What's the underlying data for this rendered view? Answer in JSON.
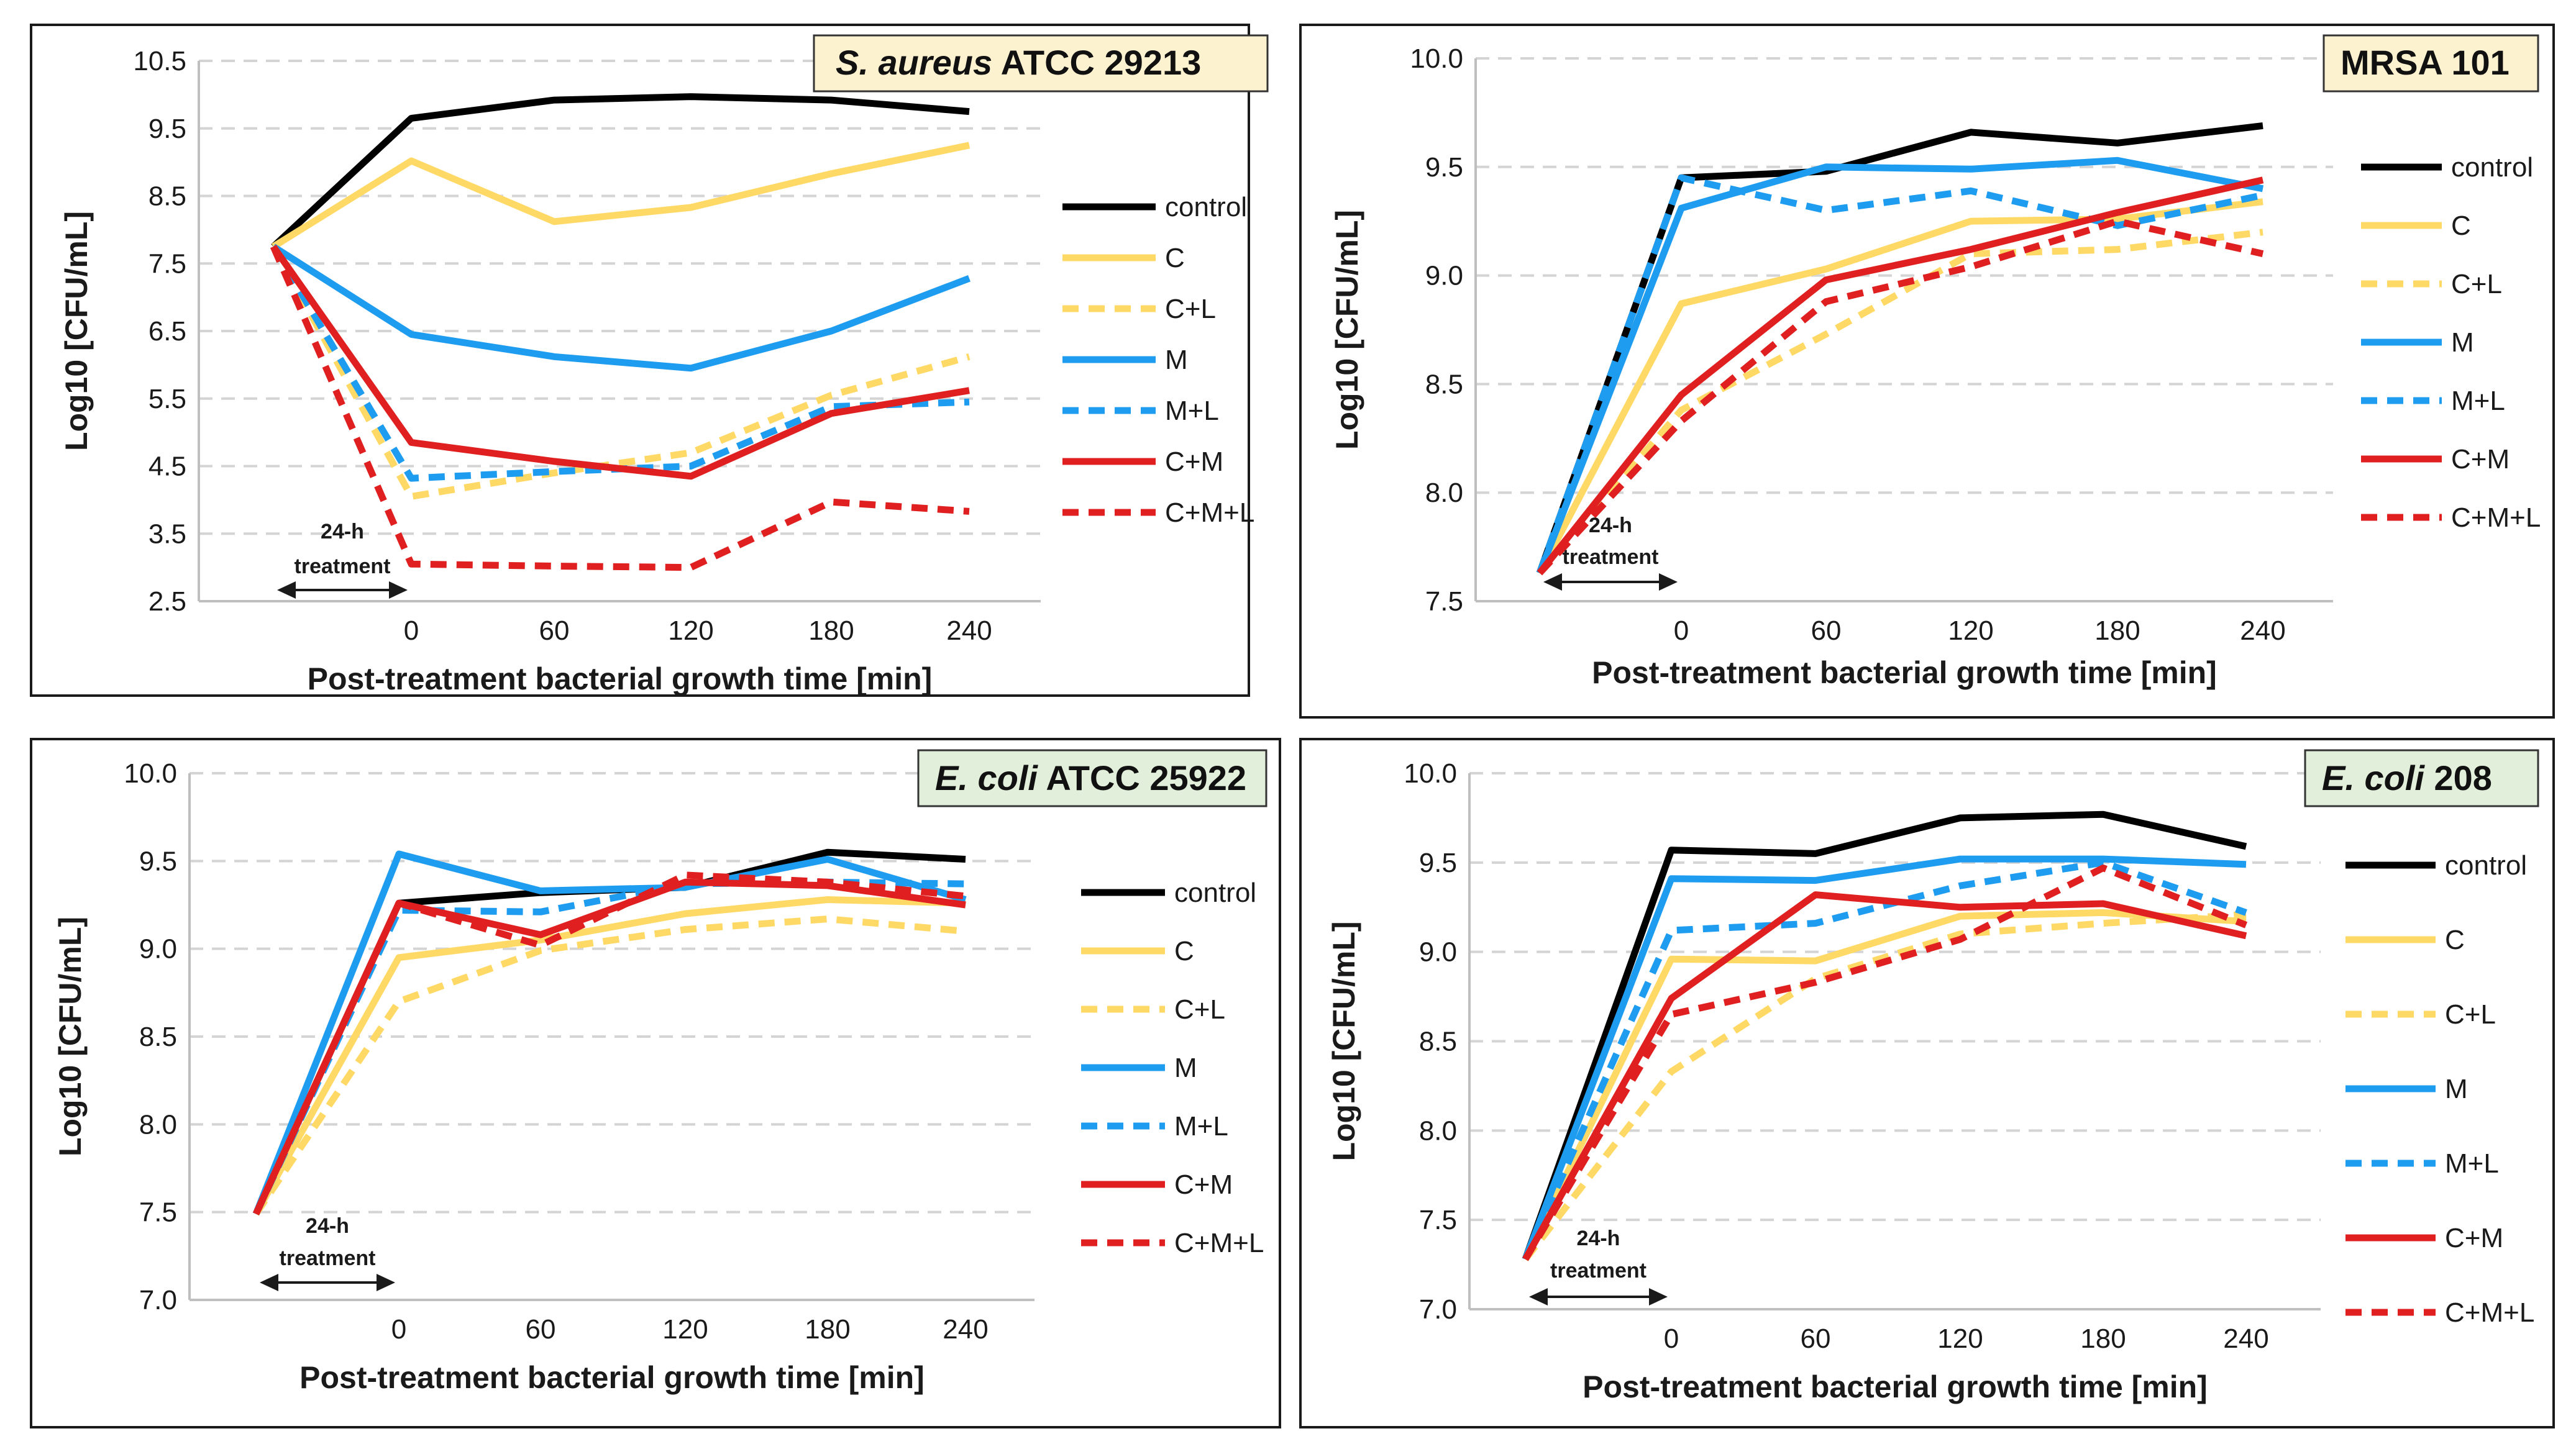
{
  "chart_data": [
    {
      "type": "line",
      "title": "S. aureus ATCC 29213",
      "title_italic": "S. aureus",
      "title_rest": " ATCC 29213",
      "title_bg": "#fdf2d0",
      "xlabel": "Post-treatment bacterial growth time [min]",
      "ylabel": "Log10 [CFU/mL]",
      "ylim": [
        2.5,
        10.5
      ],
      "yticks": [
        "2.5",
        "3.5",
        "4.5",
        "5.5",
        "6.5",
        "7.5",
        "8.5",
        "9.5",
        "10.5"
      ],
      "categories": [
        "",
        "0",
        "60",
        "120",
        "180",
        "240"
      ],
      "treatment_label_1": "24-h",
      "treatment_label_2": "treatment",
      "series": [
        {
          "name": "control",
          "color": "#000000",
          "dashed": false,
          "values": [
            7.75,
            9.65,
            9.92,
            9.97,
            9.92,
            9.75
          ]
        },
        {
          "name": "C",
          "color": "#ffd966",
          "dashed": false,
          "values": [
            7.75,
            9.02,
            8.12,
            8.33,
            8.83,
            9.25
          ]
        },
        {
          "name": "C+L",
          "color": "#ffd966",
          "dashed": true,
          "values": [
            7.75,
            4.05,
            4.4,
            4.7,
            5.55,
            6.12
          ]
        },
        {
          "name": "M",
          "color": "#1e9cf0",
          "dashed": false,
          "values": [
            7.75,
            6.45,
            6.12,
            5.95,
            6.5,
            7.28
          ]
        },
        {
          "name": "M+L",
          "color": "#1e9cf0",
          "dashed": true,
          "values": [
            7.75,
            4.32,
            4.42,
            4.5,
            5.38,
            5.45
          ]
        },
        {
          "name": "C+M",
          "color": "#e02020",
          "dashed": false,
          "values": [
            7.75,
            4.85,
            4.57,
            4.35,
            5.28,
            5.62
          ]
        },
        {
          "name": "C+M+L",
          "color": "#e02020",
          "dashed": true,
          "values": [
            7.75,
            3.05,
            3.02,
            3.0,
            3.97,
            3.83
          ]
        }
      ]
    },
    {
      "type": "line",
      "title": "MRSA 101",
      "title_italic": "",
      "title_rest": "MRSA 101",
      "title_bg": "#fdf2d0",
      "xlabel": "Post-treatment bacterial growth time [min]",
      "ylabel": "Log10 [CFU/mL]",
      "ylim": [
        7.5,
        10.0
      ],
      "yticks": [
        "7.5",
        "8.0",
        "8.5",
        "9.0",
        "9.5",
        "10.0"
      ],
      "categories": [
        "",
        "0",
        "60",
        "120",
        "180",
        "240"
      ],
      "treatment_label_1": "24-h",
      "treatment_label_2": "treatment",
      "series": [
        {
          "name": "control",
          "color": "#000000",
          "dashed": false,
          "values": [
            7.63,
            9.45,
            9.48,
            9.66,
            9.61,
            9.69
          ]
        },
        {
          "name": "C",
          "color": "#ffd966",
          "dashed": false,
          "values": [
            7.63,
            8.87,
            9.03,
            9.25,
            9.26,
            9.34
          ]
        },
        {
          "name": "C+L",
          "color": "#ffd966",
          "dashed": true,
          "values": [
            7.63,
            8.38,
            8.73,
            9.1,
            9.12,
            9.2
          ]
        },
        {
          "name": "M",
          "color": "#1e9cf0",
          "dashed": false,
          "values": [
            7.63,
            9.31,
            9.5,
            9.49,
            9.53,
            9.4
          ]
        },
        {
          "name": "M+L",
          "color": "#1e9cf0",
          "dashed": true,
          "values": [
            7.63,
            9.45,
            9.3,
            9.39,
            9.23,
            9.37
          ]
        },
        {
          "name": "C+M",
          "color": "#e02020",
          "dashed": false,
          "values": [
            7.63,
            8.45,
            8.98,
            9.12,
            9.29,
            9.44
          ]
        },
        {
          "name": "C+M+L",
          "color": "#e02020",
          "dashed": true,
          "values": [
            7.63,
            8.33,
            8.88,
            9.04,
            9.25,
            9.1
          ]
        }
      ]
    },
    {
      "type": "line",
      "title": "E. coli ATCC 25922",
      "title_italic": "E. coli",
      "title_rest": " ATCC 25922",
      "title_bg": "#e2efda",
      "xlabel": "Post-treatment bacterial growth time [min]",
      "ylabel": "Log10 [CFU/mL]",
      "ylim": [
        7.0,
        10.0
      ],
      "yticks": [
        "7.0",
        "7.5",
        "8.0",
        "8.5",
        "9.0",
        "9.5",
        "10.0"
      ],
      "categories": [
        "",
        "0",
        "60",
        "120",
        "180",
        "240"
      ],
      "treatment_label_1": "24-h",
      "treatment_label_2": "treatment",
      "series": [
        {
          "name": "control",
          "color": "#000000",
          "dashed": false,
          "values": [
            7.49,
            9.26,
            9.32,
            9.35,
            9.55,
            9.51
          ]
        },
        {
          "name": "C",
          "color": "#ffd966",
          "dashed": false,
          "values": [
            7.49,
            8.95,
            9.05,
            9.2,
            9.28,
            9.26
          ]
        },
        {
          "name": "C+L",
          "color": "#ffd966",
          "dashed": true,
          "values": [
            7.49,
            8.7,
            8.99,
            9.11,
            9.17,
            9.1
          ]
        },
        {
          "name": "M",
          "color": "#1e9cf0",
          "dashed": false,
          "values": [
            7.49,
            9.54,
            9.33,
            9.35,
            9.51,
            9.28
          ]
        },
        {
          "name": "M+L",
          "color": "#1e9cf0",
          "dashed": true,
          "values": [
            7.49,
            9.22,
            9.21,
            9.37,
            9.38,
            9.37
          ]
        },
        {
          "name": "C+M",
          "color": "#e02020",
          "dashed": false,
          "values": [
            7.49,
            9.26,
            9.08,
            9.38,
            9.36,
            9.25
          ]
        },
        {
          "name": "C+M+L",
          "color": "#e02020",
          "dashed": true,
          "values": [
            7.49,
            9.26,
            9.02,
            9.42,
            9.38,
            9.3
          ]
        }
      ]
    },
    {
      "type": "line",
      "title": "E. coli 208",
      "title_italic": "E. coli",
      "title_rest": " 208",
      "title_bg": "#e2efda",
      "xlabel": "Post-treatment bacterial growth time [min]",
      "ylabel": "Log10 [CFU/mL]",
      "ylim": [
        7.0,
        10.0
      ],
      "yticks": [
        "7.0",
        "7.5",
        "8.0",
        "8.5",
        "9.0",
        "9.5",
        "10.0"
      ],
      "categories": [
        "",
        "0",
        "60",
        "120",
        "180",
        "240"
      ],
      "treatment_label_1": "24-h",
      "treatment_label_2": "treatment",
      "series": [
        {
          "name": "control",
          "color": "#000000",
          "dashed": false,
          "values": [
            7.28,
            9.57,
            9.55,
            9.75,
            9.77,
            9.59
          ]
        },
        {
          "name": "C",
          "color": "#ffd966",
          "dashed": false,
          "values": [
            7.28,
            8.96,
            8.95,
            9.2,
            9.22,
            9.17
          ]
        },
        {
          "name": "C+L",
          "color": "#ffd966",
          "dashed": true,
          "values": [
            7.28,
            8.33,
            8.85,
            9.1,
            9.16,
            9.21
          ]
        },
        {
          "name": "M",
          "color": "#1e9cf0",
          "dashed": false,
          "values": [
            7.28,
            9.41,
            9.4,
            9.52,
            9.52,
            9.49
          ]
        },
        {
          "name": "M+L",
          "color": "#1e9cf0",
          "dashed": true,
          "values": [
            7.28,
            9.12,
            9.16,
            9.37,
            9.5,
            9.22
          ]
        },
        {
          "name": "C+M",
          "color": "#e02020",
          "dashed": false,
          "values": [
            7.28,
            8.74,
            9.32,
            9.25,
            9.27,
            9.09
          ]
        },
        {
          "name": "C+M+L",
          "color": "#e02020",
          "dashed": true,
          "values": [
            7.28,
            8.65,
            8.83,
            9.07,
            9.47,
            9.15
          ]
        }
      ]
    }
  ]
}
